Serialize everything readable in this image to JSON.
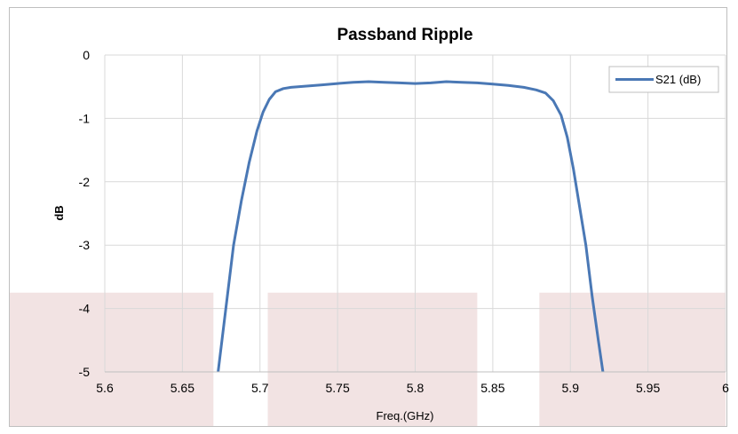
{
  "chart_data": {
    "type": "line",
    "title": "Passband Ripple",
    "xlabel": "Freq.(GHz)",
    "ylabel": "dB",
    "xlim": [
      5.6,
      6.0
    ],
    "ylim": [
      -5,
      0
    ],
    "x_ticks": [
      5.6,
      5.65,
      5.7,
      5.75,
      5.8,
      5.85,
      5.9,
      5.95,
      6.0
    ],
    "x_tick_labels": [
      "5.6",
      "5.65",
      "5.7",
      "5.75",
      "5.8",
      "5.85",
      "5.9",
      "5.95",
      "6"
    ],
    "y_ticks": [
      0,
      -1,
      -2,
      -3,
      -4,
      -5
    ],
    "y_tick_labels": [
      "0",
      "-1",
      "-2",
      "-3",
      "-4",
      "-5"
    ],
    "grid": true,
    "legend_position": "top-right",
    "series": [
      {
        "name": "S21 (dB)",
        "color": "#4a78b5",
        "x": [
          5.673,
          5.678,
          5.683,
          5.688,
          5.693,
          5.698,
          5.702,
          5.706,
          5.71,
          5.715,
          5.72,
          5.73,
          5.74,
          5.75,
          5.76,
          5.77,
          5.78,
          5.79,
          5.8,
          5.81,
          5.82,
          5.83,
          5.84,
          5.85,
          5.86,
          5.87,
          5.878,
          5.884,
          5.889,
          5.894,
          5.898,
          5.902,
          5.906,
          5.91,
          5.914,
          5.918,
          5.921
        ],
        "y": [
          -5.0,
          -4.0,
          -3.0,
          -2.3,
          -1.7,
          -1.2,
          -0.9,
          -0.7,
          -0.58,
          -0.53,
          -0.51,
          -0.49,
          -0.47,
          -0.45,
          -0.43,
          -0.42,
          -0.43,
          -0.44,
          -0.45,
          -0.44,
          -0.42,
          -0.43,
          -0.44,
          -0.46,
          -0.48,
          -0.51,
          -0.55,
          -0.6,
          -0.72,
          -0.95,
          -1.3,
          -1.8,
          -2.4,
          -3.0,
          -3.8,
          -4.5,
          -5.0
        ]
      }
    ],
    "shaded_regions": [
      {
        "x": [
          5.6,
          5.67
        ],
        "y": [
          -5,
          -3.75
        ],
        "color": "#f2e3e3"
      },
      {
        "x": [
          5.705,
          5.84
        ],
        "y": [
          -5,
          -3.75
        ],
        "color": "#f2e3e3"
      },
      {
        "x": [
          5.88,
          6.0
        ],
        "y": [
          -5,
          -3.75
        ],
        "color": "#f2e3e3"
      }
    ]
  }
}
